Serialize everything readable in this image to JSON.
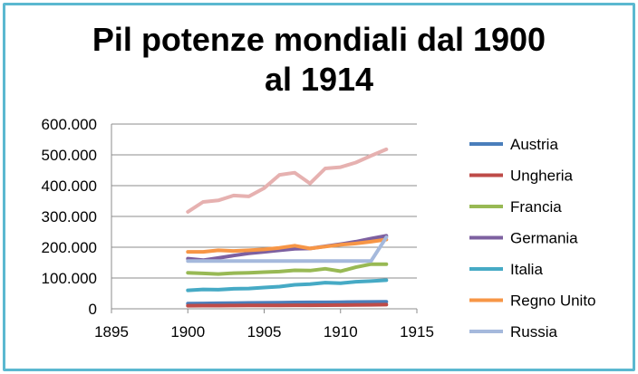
{
  "chart_data": {
    "type": "line",
    "title_line1": "Pil potenze mondiali dal 1900",
    "title_line2": "al 1914",
    "xlabel": "",
    "ylabel": "",
    "xlim": [
      1895,
      1915
    ],
    "ylim": [
      0,
      600000
    ],
    "x_ticks": [
      "1895",
      "1900",
      "1905",
      "1910",
      "1915"
    ],
    "y_ticks": [
      "0",
      "100.000",
      "200.000",
      "300.000",
      "400.000",
      "500.000",
      "600.000"
    ],
    "grid": "horizontal",
    "legend_position": "right",
    "x": [
      1900,
      1901,
      1902,
      1903,
      1904,
      1905,
      1906,
      1907,
      1908,
      1909,
      1910,
      1911,
      1912,
      1913
    ],
    "series": [
      {
        "name": "Austria",
        "color": "#4a7ebb",
        "values": [
          17000,
          17500,
          18000,
          18500,
          19000,
          19500,
          20000,
          20500,
          21000,
          21000,
          21500,
          22000,
          22500,
          23000
        ]
      },
      {
        "name": "Ungheria",
        "color": "#be4b48",
        "values": [
          10000,
          10200,
          10400,
          10600,
          10800,
          11000,
          11200,
          11400,
          11600,
          11800,
          12000,
          12500,
          13000,
          13500
        ]
      },
      {
        "name": "Francia",
        "color": "#98b954",
        "values": [
          117000,
          115000,
          113000,
          116000,
          117000,
          119000,
          121000,
          125000,
          124000,
          130000,
          122000,
          135000,
          145000,
          145000
        ]
      },
      {
        "name": "Germania",
        "color": "#7d60a0",
        "values": [
          163000,
          158000,
          165000,
          173000,
          180000,
          185000,
          190000,
          195000,
          196000,
          203000,
          210000,
          218000,
          228000,
          237000
        ]
      },
      {
        "name": "Italia",
        "color": "#46aac5",
        "values": [
          60000,
          63000,
          62000,
          65000,
          66000,
          69000,
          72000,
          78000,
          80000,
          85000,
          83000,
          88000,
          90000,
          93000
        ]
      },
      {
        "name": "Regno Unito",
        "color": "#f79646",
        "values": [
          185000,
          185000,
          190000,
          188000,
          190000,
          193000,
          198000,
          205000,
          196000,
          202000,
          208000,
          212000,
          218000,
          225000
        ]
      },
      {
        "name": "Russia",
        "color": "#a5b9dc",
        "values": [
          155000,
          155000,
          155000,
          155000,
          155000,
          155000,
          155000,
          155000,
          155000,
          155000,
          155000,
          155000,
          155000,
          232000
        ]
      },
      {
        "name": "",
        "color": "#e6b1b0",
        "values": [
          315000,
          347000,
          352000,
          368000,
          365000,
          392000,
          435000,
          442000,
          407000,
          456000,
          460000,
          475000,
          497000,
          518000
        ]
      }
    ]
  }
}
